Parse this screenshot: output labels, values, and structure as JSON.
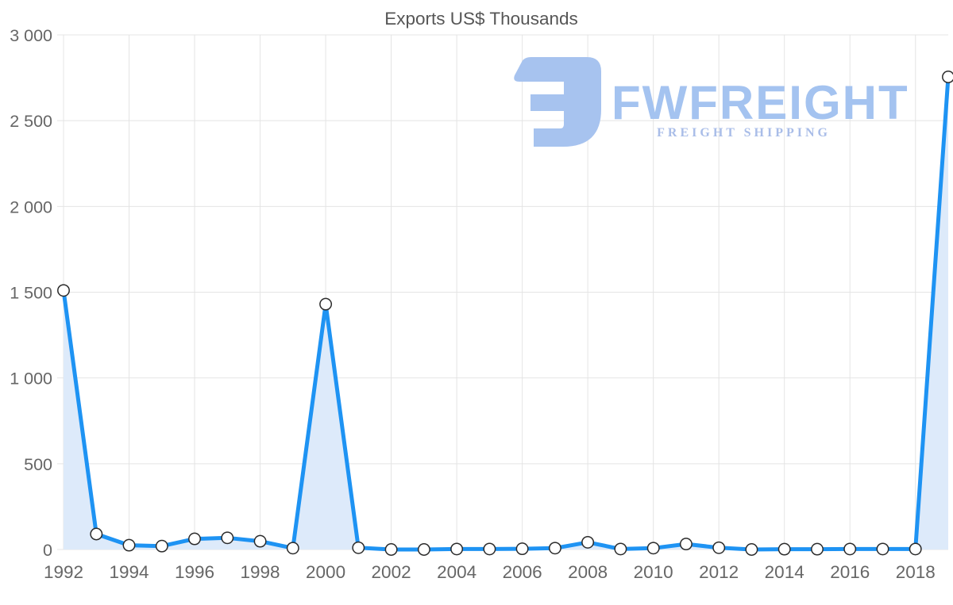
{
  "chart_data": {
    "type": "area",
    "title": "Exports US$ Thousands",
    "xlabel": "",
    "ylabel": "",
    "x": [
      1992,
      1993,
      1994,
      1995,
      1996,
      1997,
      1998,
      1999,
      2000,
      2001,
      2002,
      2003,
      2004,
      2005,
      2006,
      2007,
      2008,
      2009,
      2010,
      2011,
      2012,
      2013,
      2014,
      2015,
      2016,
      2017,
      2018,
      2019
    ],
    "series": [
      {
        "name": "Exports US$ Thousands",
        "values": [
          1510,
          90,
          25,
          20,
          62,
          68,
          48,
          8,
          1430,
          10,
          0,
          0,
          3,
          3,
          4,
          8,
          42,
          3,
          8,
          32,
          10,
          0,
          2,
          2,
          3,
          3,
          3,
          2755
        ]
      }
    ],
    "ylim": [
      0,
      3000
    ],
    "y_tick_values": [
      0,
      500,
      1000,
      1500,
      2000,
      2500,
      3000
    ],
    "y_tick_labels": [
      "0",
      "500",
      "1 000",
      "1 500",
      "2 000",
      "2 500",
      "3 000"
    ],
    "x_tick_values": [
      1992,
      1994,
      1996,
      1998,
      2000,
      2002,
      2004,
      2006,
      2008,
      2010,
      2012,
      2014,
      2016,
      2018
    ],
    "x_tick_labels": [
      "1992",
      "1994",
      "1996",
      "1998",
      "2000",
      "2002",
      "2004",
      "2006",
      "2008",
      "2010",
      "2012",
      "2014",
      "2016",
      "2018"
    ],
    "grid": true,
    "legend": "none",
    "colors": {
      "line": "#1e93f3",
      "area": "#ddeafa",
      "marker_fill": "#ffffff",
      "marker_stroke": "#2b2b2b",
      "grid": "#e4e4e4",
      "tick_text": "#666666",
      "title_text": "#565656"
    }
  },
  "logo": {
    "icon": "fwfreight-monogram-icon",
    "wordmark": "FWFREIGHT",
    "tagline": "FREIGHT SHIPPING",
    "wordmark_color": "#a4c3f0",
    "tagline_color": "#a9bde8",
    "icon_color": "#a7c3ef"
  }
}
